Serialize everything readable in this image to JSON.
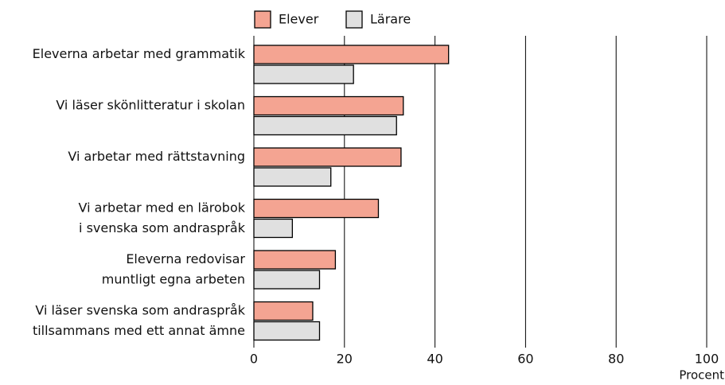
{
  "chart_data": {
    "type": "bar",
    "orientation": "horizontal",
    "categories": [
      [
        "Eleverna arbetar med grammatik"
      ],
      [
        "Vi läser skönlitteratur i skolan"
      ],
      [
        "Vi arbetar med rättstavning"
      ],
      [
        "Vi arbetar med en lärobok",
        "i svenska som andraspråk"
      ],
      [
        "Eleverna redovisar",
        "muntligt egna arbeten"
      ],
      [
        "Vi läser svenska som andraspråk",
        "tillsammans med ett annat ämne"
      ]
    ],
    "series": [
      {
        "name": "Elever",
        "color": "#f4a492",
        "values": [
          43,
          33,
          32.5,
          27.5,
          18,
          13
        ]
      },
      {
        "name": "Lärare",
        "color": "#e0e0e0",
        "values": [
          22,
          31.5,
          17,
          8.5,
          14.5,
          14.5
        ]
      }
    ],
    "xlabel": "Procent",
    "xlim": [
      0,
      100
    ],
    "xticks": [
      0,
      20,
      40,
      60,
      80,
      100
    ],
    "grid": true,
    "legend": "top"
  }
}
